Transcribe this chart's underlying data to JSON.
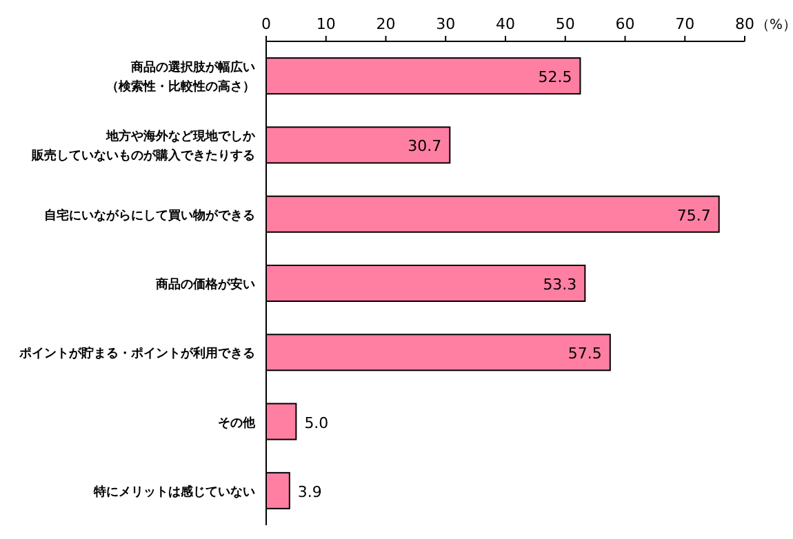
{
  "chart_data": {
    "type": "bar",
    "orientation": "horizontal",
    "xlabel": "（%）",
    "categories": [
      "商品の選択肢が幅広い（検索性・比較性の高さ）",
      "地方や海外など現地でしか販売していないものが購入できたりする",
      "自宅にいながらにして買い物ができる",
      "商品の価格が安い",
      "ポイントが貯まる・ポイントが利用できる",
      "その他",
      "特にメリットは感じていない"
    ],
    "values": [
      52.5,
      30.7,
      75.7,
      53.3,
      57.5,
      5.0,
      3.9
    ],
    "value_labels": [
      "52.5",
      "30.7",
      "75.7",
      "53.3",
      "57.5",
      "5.0",
      "3.9"
    ],
    "color": "#ff7fa3",
    "xlim": [
      0,
      80
    ],
    "xticks": [
      0,
      10,
      20,
      30,
      40,
      50,
      60,
      70,
      80
    ],
    "grid": false
  }
}
